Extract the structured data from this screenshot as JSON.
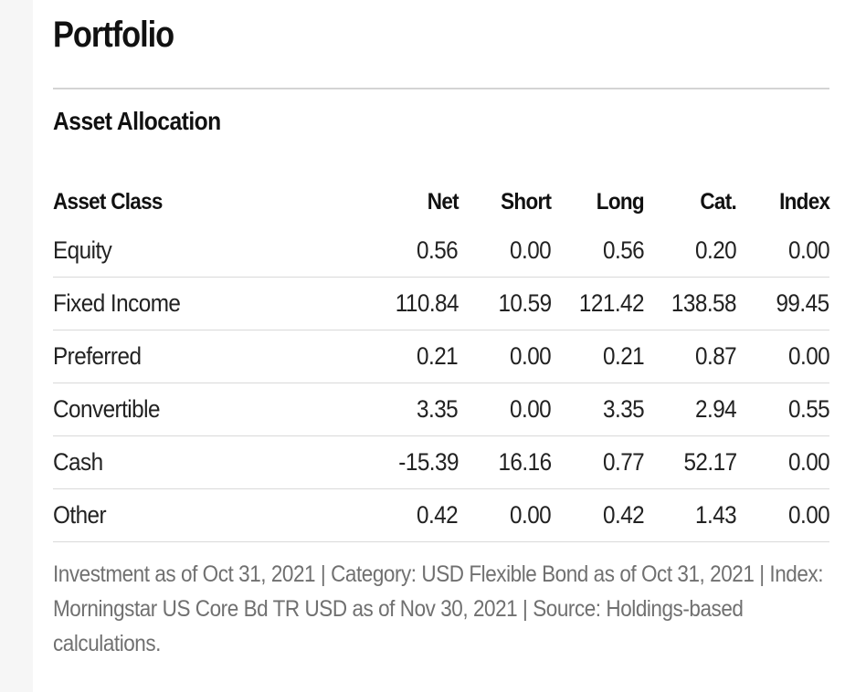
{
  "header": {
    "title": "Portfolio"
  },
  "section": {
    "title": "Asset Allocation"
  },
  "table": {
    "columns": [
      "Asset Class",
      "Net",
      "Short",
      "Long",
      "Cat.",
      "Index"
    ],
    "rows": [
      [
        "Equity",
        "0.56",
        "0.00",
        "0.56",
        "0.20",
        "0.00"
      ],
      [
        "Fixed Income",
        "110.84",
        "10.59",
        "121.42",
        "138.58",
        "99.45"
      ],
      [
        "Preferred",
        "0.21",
        "0.00",
        "0.21",
        "0.87",
        "0.00"
      ],
      [
        "Convertible",
        "3.35",
        "0.00",
        "3.35",
        "2.94",
        "0.55"
      ],
      [
        "Cash",
        "-15.39",
        "16.16",
        "0.77",
        "52.17",
        "0.00"
      ],
      [
        "Other",
        "0.42",
        "0.00",
        "0.42",
        "1.43",
        "0.00"
      ]
    ]
  },
  "footnote": "Investment as of Oct 31, 2021 | Category: USD Flexible Bond as of Oct 31, 2021 | Index: Morningstar US Core Bd TR USD as of Nov 30, 2021 | Source: Holdings-based calculations.",
  "colors": {
    "text": "#1e1e1e",
    "footnote": "#707070",
    "divider": "#d9d9d9",
    "gutter": "#f6f6f6"
  }
}
